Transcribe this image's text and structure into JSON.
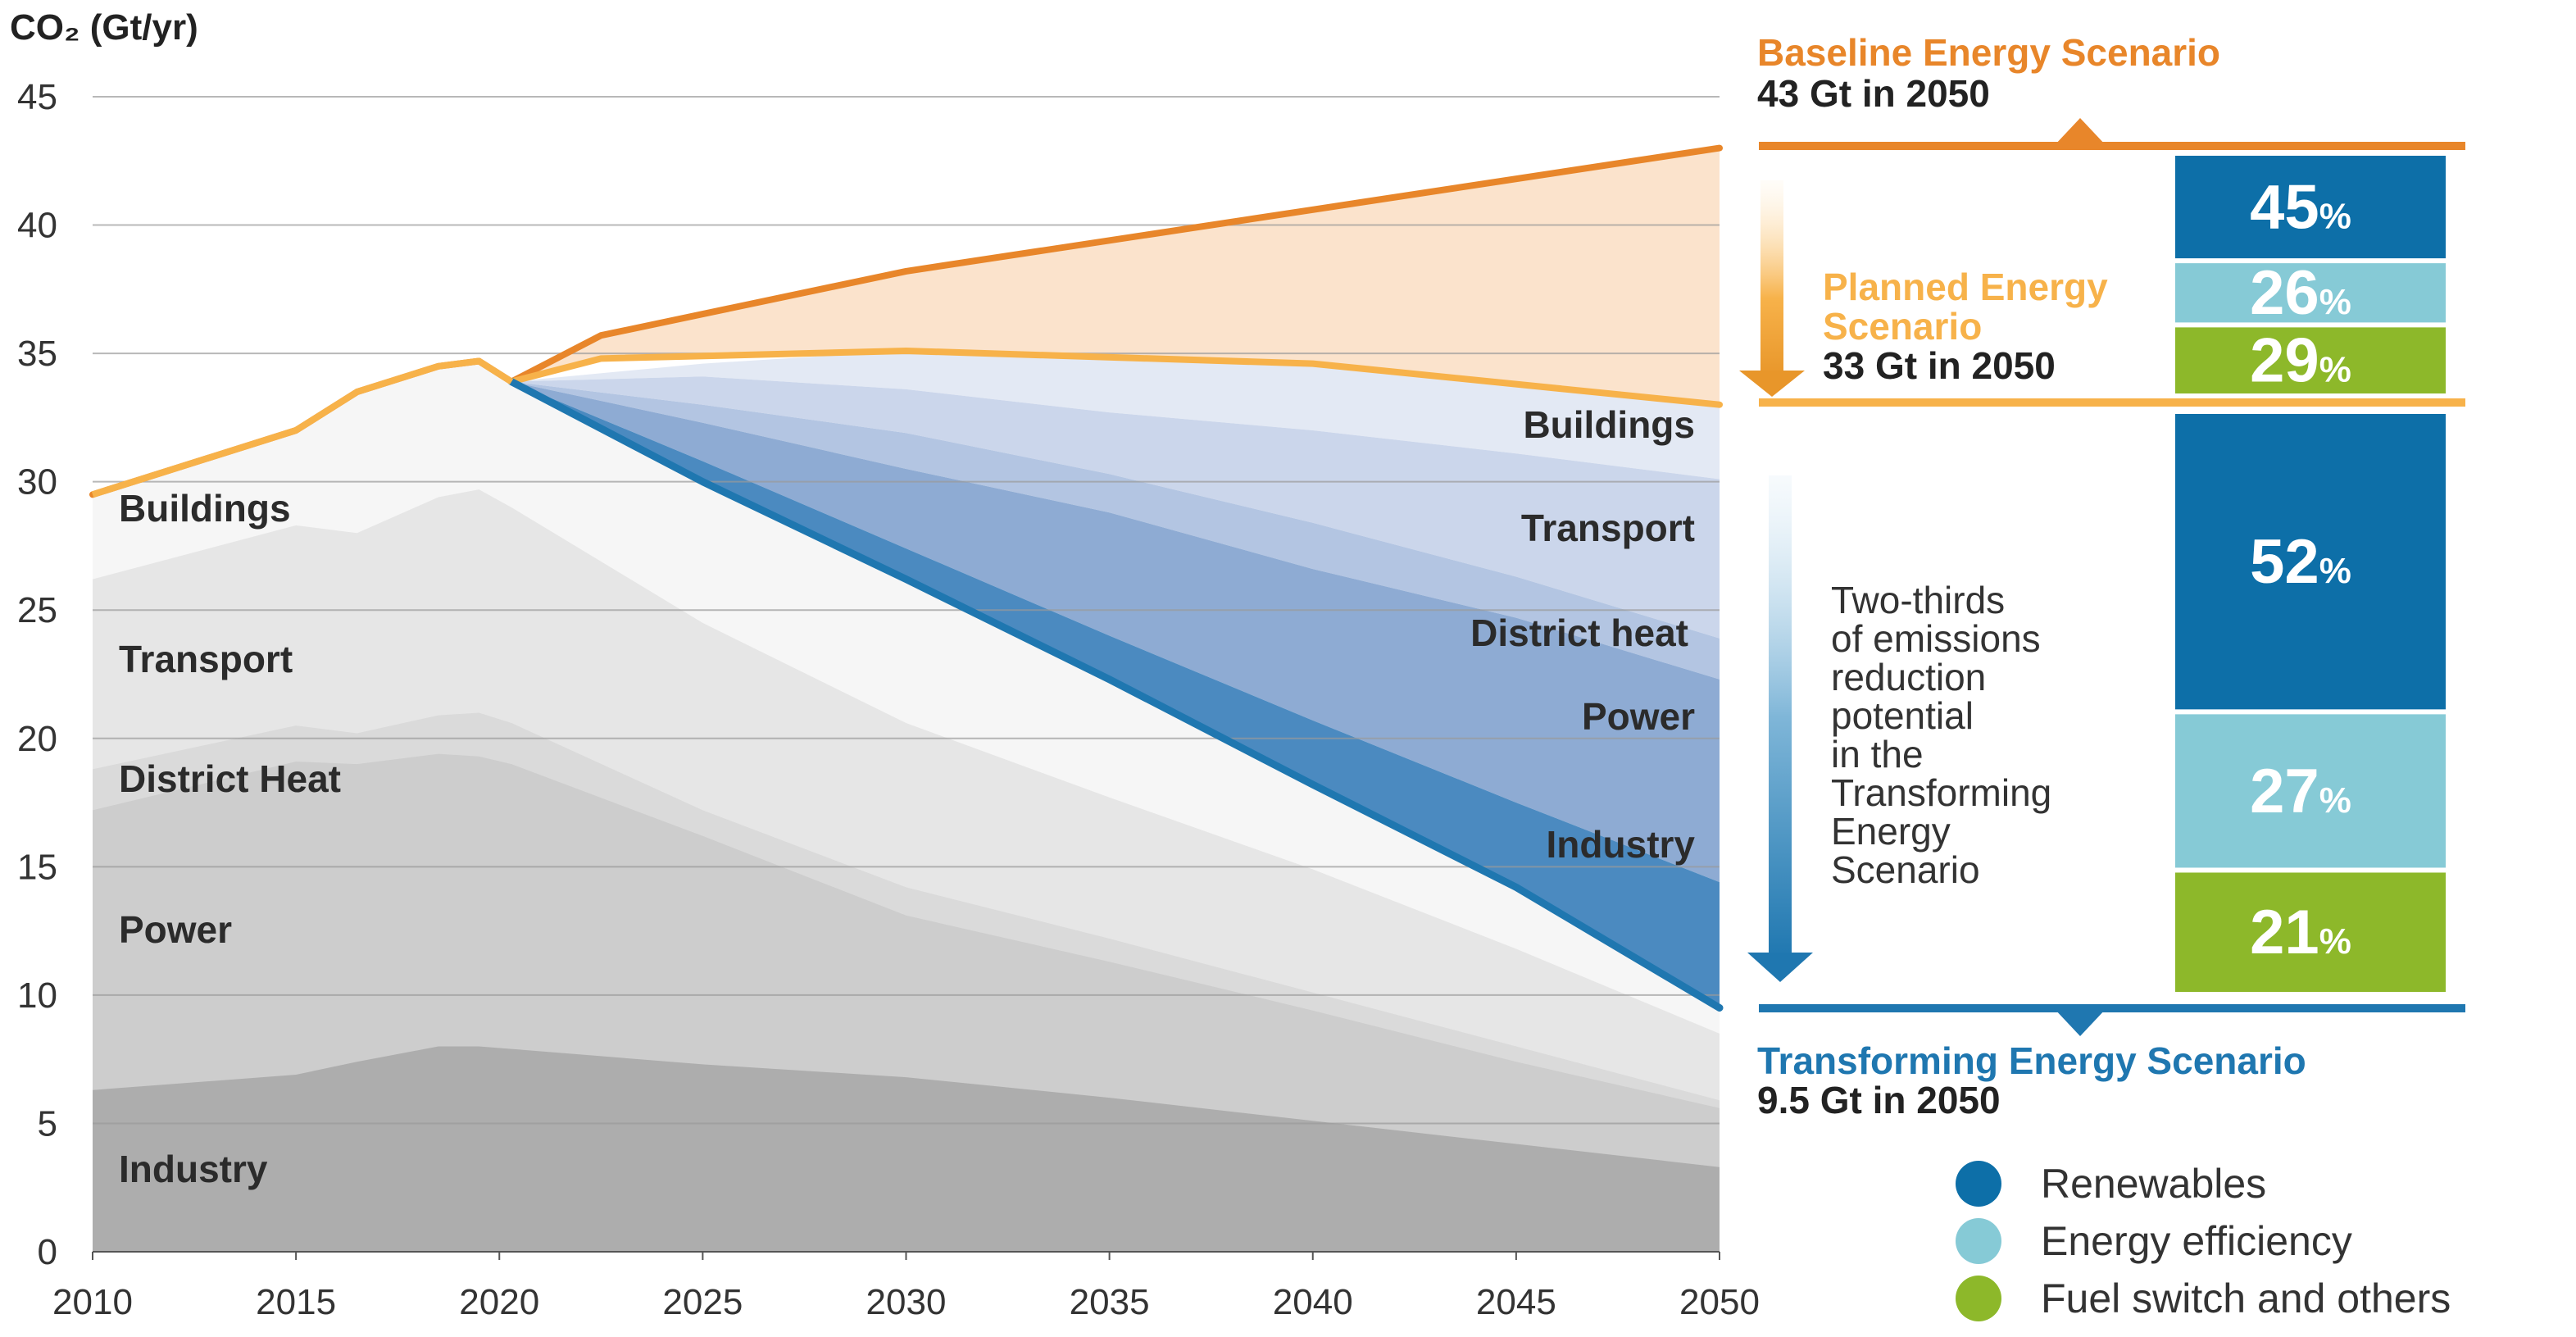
{
  "colors": {
    "baseline": "#E8862A",
    "planned": "#F7B24A",
    "transforming": "#1F77B0",
    "renewables": "#0D6FA8",
    "energy_efficiency": "#86CAD6",
    "fuel_switch": "#8DB82A",
    "baseline_fill": "#FBE3CC"
  },
  "chart_data": {
    "type": "area",
    "ylabel": "CO₂ (Gt/yr)",
    "xlim": [
      2010,
      2050
    ],
    "ylim": [
      0,
      45
    ],
    "x_ticks": [
      "2010",
      "2015",
      "2020",
      "2025",
      "2030",
      "2035",
      "2040",
      "2045",
      "2050"
    ],
    "y_ticks": [
      "0",
      "5",
      "10",
      "15",
      "20",
      "25",
      "30",
      "35",
      "40",
      "45"
    ],
    "grid": true,
    "historical_sectors": {
      "x": [
        2010,
        2015,
        2016.5,
        2018.5,
        2019.5,
        2020.3
      ],
      "series": [
        {
          "name": "Industry",
          "values": [
            6.3,
            6.9,
            7.4,
            8.0,
            8.0,
            7.9
          ]
        },
        {
          "name": "Power",
          "values": [
            17.2,
            19.1,
            19.0,
            19.4,
            19.3,
            19.0
          ]
        },
        {
          "name": "District Heat",
          "values": [
            18.8,
            20.5,
            20.2,
            20.9,
            21.0,
            20.6
          ]
        },
        {
          "name": "Transport",
          "values": [
            26.2,
            28.3,
            28.0,
            29.4,
            29.7,
            29.0
          ]
        },
        {
          "name": "Buildings",
          "values": [
            29.5,
            32.0,
            33.5,
            34.5,
            34.7,
            33.9
          ]
        }
      ]
    },
    "reduced_sector_baselines": {
      "x": [
        2020.3,
        2025,
        2030,
        2035,
        2040,
        2045,
        2050
      ],
      "series": [
        {
          "name": "Industry",
          "values": [
            7.9,
            7.3,
            6.8,
            6.0,
            5.1,
            4.2,
            3.3
          ]
        },
        {
          "name": "Power",
          "values": [
            19.0,
            16.2,
            13.1,
            11.3,
            9.4,
            7.4,
            5.6
          ]
        },
        {
          "name": "District Heat",
          "values": [
            20.6,
            17.2,
            14.2,
            12.2,
            10.1,
            8.0,
            5.9
          ]
        },
        {
          "name": "Transport",
          "values": [
            29.0,
            24.5,
            20.6,
            17.7,
            14.9,
            11.8,
            8.5
          ]
        }
      ]
    },
    "abatement_bands": {
      "x": [
        2020.3,
        2025,
        2030,
        2035,
        2040,
        2045,
        2050
      ],
      "series": [
        {
          "name": "Industry",
          "values": [
            33.9,
            30.0,
            26.2,
            22.3,
            18.2,
            14.2,
            9.5
          ]
        },
        {
          "name": "Power",
          "values": [
            33.9,
            30.8,
            27.4,
            24.0,
            20.7,
            17.5,
            14.4
          ]
        },
        {
          "name": "District heat",
          "values": [
            33.9,
            32.3,
            30.5,
            28.8,
            26.6,
            24.7,
            22.3
          ]
        },
        {
          "name": "Transport",
          "values": [
            33.9,
            33.0,
            31.9,
            30.3,
            28.4,
            26.3,
            23.9
          ]
        },
        {
          "name": "Buildings",
          "values": [
            33.9,
            34.1,
            33.6,
            32.7,
            32.0,
            31.1,
            30.1
          ]
        }
      ]
    },
    "scenarios": [
      {
        "name": "Baseline Energy Scenario",
        "x": [
          2010,
          2015,
          2016.5,
          2018.5,
          2019.5,
          2020.3,
          2022.5,
          2030,
          2040,
          2050
        ],
        "values": [
          29.5,
          32.0,
          33.5,
          34.5,
          34.7,
          33.9,
          35.7,
          38.2,
          40.6,
          43.0
        ]
      },
      {
        "name": "Planned Energy Scenario",
        "x": [
          2020.3,
          2022.5,
          2030,
          2040,
          2050
        ],
        "values": [
          33.9,
          34.8,
          35.1,
          34.6,
          33.0
        ]
      },
      {
        "name": "Transforming Energy Scenario",
        "x": [
          2020.3,
          2025,
          2030,
          2035,
          2040,
          2045,
          2050
        ],
        "values": [
          33.9,
          30.0,
          26.2,
          22.3,
          18.2,
          14.2,
          9.5
        ]
      }
    ]
  },
  "axis": {
    "ylabel": "CO₂ (Gt/yr)"
  },
  "left_labels": {
    "buildings": "Buildings",
    "transport": "Transport",
    "district_heat": "District Heat",
    "power": "Power",
    "industry": "Industry"
  },
  "right_labels": {
    "buildings": "Buildings",
    "transport": "Transport",
    "district_heat": "District heat",
    "power": "Power",
    "industry": "Industry"
  },
  "baseline": {
    "title": "Baseline Energy Scenario",
    "subtitle": "43 Gt in 2050"
  },
  "planned": {
    "title_line1": "Planned Energy",
    "title_line2": "Scenario",
    "subtitle": "33 Gt in 2050"
  },
  "transforming": {
    "title": "Transforming Energy Scenario",
    "subtitle": "9.5 Gt in 2050"
  },
  "note_lines": [
    "Two-thirds",
    "of emissions",
    "reduction",
    "potential",
    "in the",
    "Transforming",
    "Energy",
    "Scenario"
  ],
  "bars": {
    "upper": [
      {
        "key": "renewables",
        "value": 45,
        "label": "45",
        "unit": "%"
      },
      {
        "key": "energy_efficiency",
        "value": 26,
        "label": "26",
        "unit": "%"
      },
      {
        "key": "fuel_switch",
        "value": 29,
        "label": "29",
        "unit": "%"
      }
    ],
    "lower": [
      {
        "key": "renewables",
        "value": 52,
        "label": "52",
        "unit": "%"
      },
      {
        "key": "energy_efficiency",
        "value": 27,
        "label": "27",
        "unit": "%"
      },
      {
        "key": "fuel_switch",
        "value": 21,
        "label": "21",
        "unit": "%"
      }
    ]
  },
  "legend": [
    {
      "key": "renewables",
      "label": "Renewables"
    },
    {
      "key": "energy_efficiency",
      "label": "Energy efficiency"
    },
    {
      "key": "fuel_switch",
      "label": "Fuel switch and others"
    }
  ]
}
